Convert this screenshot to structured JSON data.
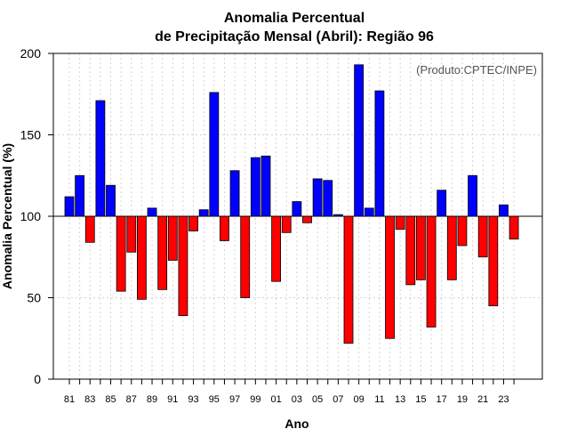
{
  "chart_data": {
    "type": "bar",
    "title": [
      "Anomalia Percentual",
      "de Precipitação Mensal (Abril): Região 96"
    ],
    "xlabel": "Ano",
    "ylabel": "Anomalia Percentual (%)",
    "credit": "(Produto:CPTEC/INPE)",
    "ylim": [
      0,
      200
    ],
    "yticks": [
      0,
      50,
      100,
      150,
      200
    ],
    "baseline": 100,
    "grid": true,
    "colors": {
      "above": "#0000ff",
      "below": "#ff0000",
      "outline": "#000000",
      "grid": "#d3d3d3"
    },
    "categories": [
      "81",
      "82",
      "83",
      "84",
      "85",
      "86",
      "87",
      "88",
      "89",
      "90",
      "91",
      "92",
      "93",
      "94",
      "95",
      "96",
      "97",
      "98",
      "99",
      "00",
      "01",
      "02",
      "03",
      "04",
      "05",
      "06",
      "07",
      "08",
      "09",
      "10",
      "11",
      "12",
      "13",
      "14",
      "15",
      "16",
      "17",
      "18",
      "19",
      "20",
      "21",
      "22",
      "23",
      "24"
    ],
    "xtick_labels": [
      "81",
      "83",
      "85",
      "87",
      "89",
      "91",
      "93",
      "95",
      "97",
      "99",
      "01",
      "03",
      "05",
      "07",
      "09",
      "11",
      "13",
      "15",
      "17",
      "19",
      "21",
      "23"
    ],
    "values": [
      112,
      125,
      84,
      171,
      119,
      54,
      78,
      49,
      105,
      55,
      73,
      39,
      91,
      104,
      176,
      85,
      128,
      50,
      136,
      137,
      60,
      90,
      109,
      96,
      123,
      122,
      101,
      22,
      193,
      105,
      177,
      25,
      92,
      58,
      61,
      32,
      116,
      61,
      82,
      125,
      75,
      45,
      107,
      86
    ]
  }
}
